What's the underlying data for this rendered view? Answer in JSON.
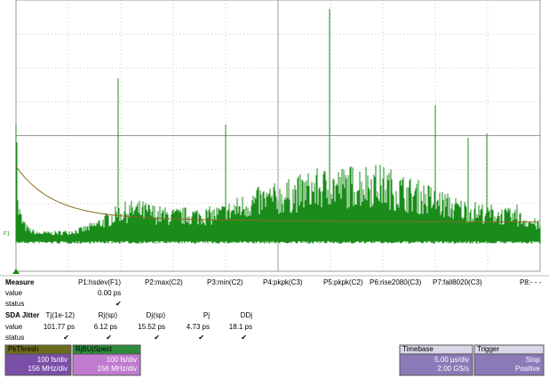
{
  "trace_label": "F1",
  "measure": {
    "title": "Measure",
    "row_labels": [
      "value",
      "status"
    ],
    "columns": [
      {
        "header": "P1:hsdev(F1)",
        "value": "0.00 ps",
        "status": "✔"
      },
      {
        "header": "P2:max(C2)"
      },
      {
        "header": "P3:min(C2)"
      },
      {
        "header": "P4:pkpk(C3)"
      },
      {
        "header": "P5:pkpk(C2)"
      },
      {
        "header": "P6:rise2080(C3)"
      },
      {
        "header": "P7:fall8020(C3)"
      },
      {
        "header": "P8:- - -"
      }
    ]
  },
  "jitter": {
    "title": "SDA Jitter",
    "row_labels": [
      "value",
      "status"
    ],
    "columns": [
      {
        "header": "Tj(1e-12)",
        "value": "101.77 ps",
        "status": "✔"
      },
      {
        "header": "Rj(sp)",
        "value": "6.12 ps",
        "status": "✔"
      },
      {
        "header": "Dj(sp)",
        "value": "15.52 ps",
        "status": "✔"
      },
      {
        "header": "Pj",
        "value": "4.73 ps",
        "status": "✔"
      },
      {
        "header": "DDj",
        "value": "18.1 ps",
        "status": "✔"
      }
    ]
  },
  "panels": [
    {
      "title": "PkThresh",
      "lines": [
        "100 fs/div",
        "156 MHz/div"
      ]
    },
    {
      "title": "RjBUjSpect",
      "lines": [
        "100 fs/div",
        "156 MHz/div"
      ]
    },
    {
      "title": "Timebase",
      "lines": [
        "5.00 µs/div",
        "2.00 GS/s"
      ]
    },
    {
      "title": "Trigger",
      "lines": [
        "Stop",
        "Positive"
      ]
    }
  ]
}
